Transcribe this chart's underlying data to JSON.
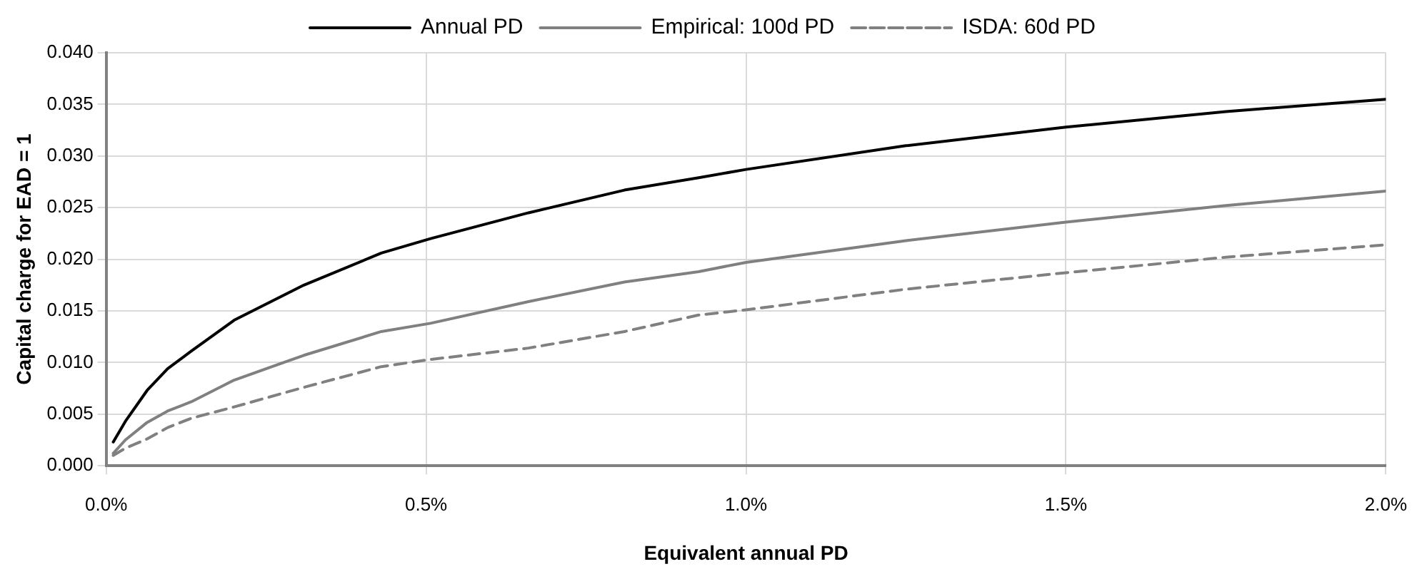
{
  "chart_data": {
    "type": "line",
    "xlabel": "Equivalent annual PD",
    "ylabel": "Capital charge for EAD = 1",
    "xlim": [
      0,
      2
    ],
    "xticks": [
      {
        "value": 0,
        "label": "0.0%"
      },
      {
        "value": 0.5,
        "label": "0.5%"
      },
      {
        "value": 1,
        "label": "1.0%"
      },
      {
        "value": 1.5,
        "label": "1.5%"
      },
      {
        "value": 2,
        "label": "2.0%"
      }
    ],
    "ylim": [
      0,
      0.04
    ],
    "yticks": [
      {
        "value": 0,
        "label": "0.000"
      },
      0.005,
      {
        "value": 0.01,
        "label": "0.010"
      },
      0.015,
      {
        "value": 0.02,
        "label": "0.020"
      },
      0.025,
      {
        "value": 0.03,
        "label": "0.030"
      },
      0.035,
      {
        "value": 0.04,
        "label": "0.040"
      }
    ],
    "grid": true,
    "legend": "top",
    "marker": "none",
    "x": [
      0.011,
      0.03,
      0.064,
      0.096,
      0.133,
      0.2,
      0.309,
      0.43,
      0.507,
      0.66,
      0.81,
      0.926,
      1.0,
      1.25,
      1.5,
      1.75,
      2.0
    ],
    "series": [
      {
        "name": "Annual PD",
        "color": "#000000",
        "line_style": "solid",
        "values": [
          0.0023,
          0.0043,
          0.0073,
          0.0094,
          0.0111,
          0.0141,
          0.0175,
          0.0206,
          0.022,
          0.0245,
          0.0267,
          0.0279,
          0.0287,
          0.031,
          0.0328,
          0.0343,
          0.0355
        ]
      },
      {
        "name": "Empirical: 100d PD",
        "color": "#808080",
        "line_style": "solid",
        "values": [
          0.0012,
          0.0025,
          0.0042,
          0.0053,
          0.0062,
          0.0083,
          0.0107,
          0.013,
          0.0138,
          0.0159,
          0.0178,
          0.0188,
          0.0197,
          0.0218,
          0.0236,
          0.0252,
          0.0266
        ]
      },
      {
        "name": "ISDA: 60d PD",
        "color": "#808080",
        "line_style": "dashed",
        "values": [
          0.001,
          0.0017,
          0.0026,
          0.0037,
          0.0046,
          0.0057,
          0.0076,
          0.0096,
          0.0103,
          0.0114,
          0.013,
          0.0146,
          0.0151,
          0.0171,
          0.0187,
          0.0202,
          0.0214
        ]
      }
    ]
  }
}
